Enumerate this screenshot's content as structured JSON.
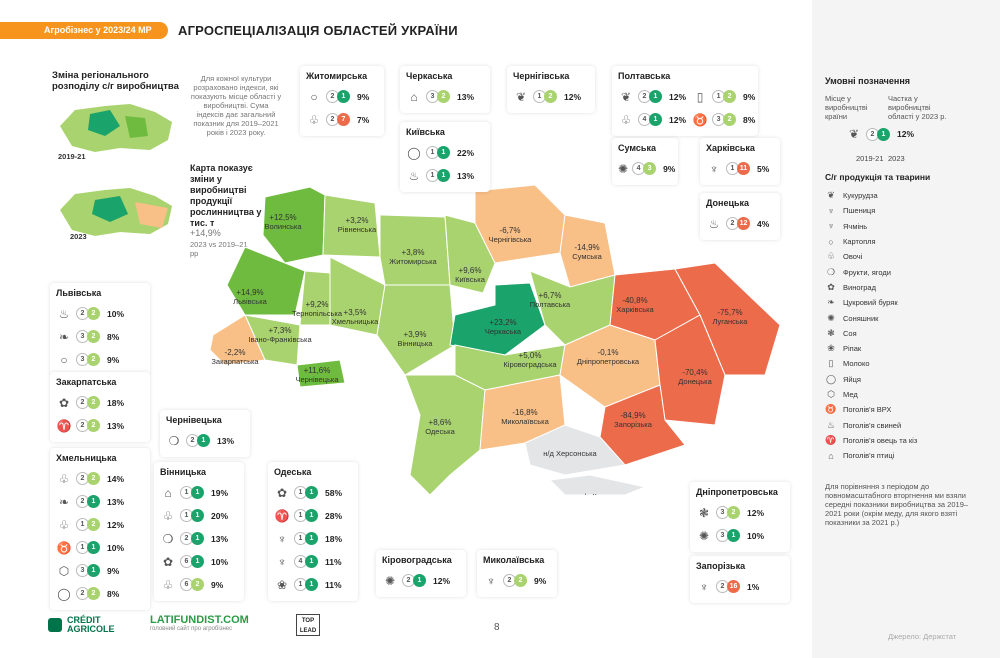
{
  "header": {
    "badge": "Агробізнес у 2023/24 МР",
    "title": "АГРОСПЕЦІАЛІЗАЦІЯ ОБЛАСТЕЙ УКРАЇНИ"
  },
  "intro": {
    "title": "Зміна регіонального розподілу с/г виробництва",
    "text": "Для кожної культури розраховано індекси, які показують місце області у виробництві. Сума індексів дає загальний показник для 2019–2021 років і 2023 року.",
    "year1": "2019-21",
    "year2": "2023",
    "map_title": "Карта показує зміни у виробництві продукції рослинництва у тис. т",
    "map_val": "+14,9%",
    "map_sub": "2023 vs 2019–21 рр"
  },
  "colors": {
    "dark_green": "#1aa36a",
    "green": "#6fbb3f",
    "light_green": "#a9d36e",
    "light_orange": "#f8bf86",
    "orange": "#f2996b",
    "red": "#ec6b4a",
    "gray": "#e4e5e7"
  },
  "regions": [
    {
      "name": "Волинська",
      "value": "+12,5%"
    },
    {
      "name": "Рівненська",
      "value": "+3,2%"
    },
    {
      "name": "Житомирська",
      "value": "+3,8%"
    },
    {
      "name": "Київська",
      "value": "+9,6%"
    },
    {
      "name": "Чернігівська",
      "value": "-6,7%"
    },
    {
      "name": "Сумська",
      "value": "-14,9%"
    },
    {
      "name": "Львівська",
      "value": "+14,9%"
    },
    {
      "name": "Тернопільська",
      "value": "+9,2%"
    },
    {
      "name": "Хмельницька",
      "value": "+3,5%"
    },
    {
      "name": "Вінницька",
      "value": "+3,9%"
    },
    {
      "name": "Черкаська",
      "value": "+23,2%"
    },
    {
      "name": "Полтавська",
      "value": "+6,7%"
    },
    {
      "name": "Харківська",
      "value": "-40,8%"
    },
    {
      "name": "Луганська",
      "value": "-75,7%"
    },
    {
      "name": "Івано-Франківська",
      "value": "+7,3%"
    },
    {
      "name": "Закарпатська",
      "value": "-2,2%"
    },
    {
      "name": "Чернівецька",
      "value": "+11,6%"
    },
    {
      "name": "Кіровоградська",
      "value": "+5,0%"
    },
    {
      "name": "Дніпропетровська",
      "value": "-0,1%"
    },
    {
      "name": "Донецька",
      "value": "-70,4%"
    },
    {
      "name": "Одеська",
      "value": "+8,6%"
    },
    {
      "name": "Миколаївська",
      "value": "-16,8%"
    },
    {
      "name": "Запорізька",
      "value": "-84,9%"
    },
    {
      "name": "н/д Херсонська",
      "value": ""
    },
    {
      "name": "н/д Крим",
      "value": ""
    }
  ],
  "cards": [
    {
      "name": "Житомирська",
      "rows": [
        {
          "icon": "potato-icon",
          "g": "○",
          "a": "2",
          "b": "1",
          "p": "9%"
        },
        {
          "icon": "vegetables-icon",
          "g": "♧",
          "a": "2",
          "b": "7",
          "p": "7%"
        }
      ]
    },
    {
      "name": "Черкаська",
      "rows": [
        {
          "icon": "poultry-icon",
          "g": "⌂",
          "a": "3",
          "b": "2",
          "p": "13%"
        }
      ]
    },
    {
      "name": "Чернігівська",
      "rows": [
        {
          "icon": "corn-icon",
          "g": "❦",
          "a": "1",
          "b": "2",
          "p": "12%"
        }
      ]
    },
    {
      "name": "Полтавська",
      "rows": [
        {
          "icon": "corn-icon",
          "g": "❦",
          "a": "2",
          "b": "1",
          "p": "12%"
        },
        {
          "icon": "milk-icon",
          "g": "▯",
          "a": "1",
          "b": "2",
          "p": "9%"
        },
        {
          "icon": "vegetables-icon",
          "g": "♧",
          "a": "4",
          "b": "1",
          "p": "12%"
        },
        {
          "icon": "cattle-icon",
          "g": "♉",
          "a": "3",
          "b": "2",
          "p": "8%"
        }
      ]
    },
    {
      "name": "Київська",
      "rows": [
        {
          "icon": "eggs-icon",
          "g": "◯",
          "a": "1",
          "b": "1",
          "p": "22%"
        },
        {
          "icon": "pigs-icon",
          "g": "♨",
          "a": "1",
          "b": "1",
          "p": "13%"
        }
      ]
    },
    {
      "name": "Сумська",
      "rows": [
        {
          "icon": "sunflower-icon",
          "g": "✺",
          "a": "4",
          "b": "3",
          "p": "9%"
        }
      ]
    },
    {
      "name": "Харківська",
      "rows": [
        {
          "icon": "wheat-icon",
          "g": "♆",
          "a": "1",
          "b": "11",
          "p": "5%"
        }
      ]
    },
    {
      "name": "Донецька",
      "rows": [
        {
          "icon": "pigs-icon",
          "g": "♨",
          "a": "2",
          "b": "12",
          "p": "4%"
        }
      ]
    },
    {
      "name": "Львівська",
      "rows": [
        {
          "icon": "pigs-icon",
          "g": "♨",
          "a": "2",
          "b": "2",
          "p": "10%"
        },
        {
          "icon": "sugar-beet-icon",
          "g": "❧",
          "a": "3",
          "b": "2",
          "p": "8%"
        },
        {
          "icon": "potato-icon",
          "g": "○",
          "a": "3",
          "b": "2",
          "p": "9%"
        }
      ]
    },
    {
      "name": "Закарпатська",
      "rows": [
        {
          "icon": "grapes-icon",
          "g": "✿",
          "a": "2",
          "b": "2",
          "p": "18%"
        },
        {
          "icon": "sheep-icon",
          "g": "♈",
          "a": "2",
          "b": "2",
          "p": "13%"
        }
      ]
    },
    {
      "name": "Хмельницька",
      "rows": [
        {
          "icon": "vegetables-icon",
          "g": "♧",
          "a": "2",
          "b": "2",
          "p": "14%"
        },
        {
          "icon": "sugar-beet-icon",
          "g": "❧",
          "a": "2",
          "b": "1",
          "p": "13%"
        },
        {
          "icon": "vegetables-icon",
          "g": "♧",
          "a": "1",
          "b": "2",
          "p": "12%"
        },
        {
          "icon": "cattle-icon",
          "g": "♉",
          "a": "1",
          "b": "1",
          "p": "10%"
        },
        {
          "icon": "honey-icon",
          "g": "⬡",
          "a": "3",
          "b": "1",
          "p": "9%"
        },
        {
          "icon": "eggs-icon",
          "g": "◯",
          "a": "2",
          "b": "2",
          "p": "8%"
        }
      ]
    },
    {
      "name": "Чернівецька",
      "rows": [
        {
          "icon": "fruit-icon",
          "g": "❍",
          "a": "2",
          "b": "1",
          "p": "13%"
        }
      ]
    },
    {
      "name": "Вінницька",
      "rows": [
        {
          "icon": "poultry-icon",
          "g": "⌂",
          "a": "1",
          "b": "1",
          "p": "19%"
        },
        {
          "icon": "vegetables-icon",
          "g": "♧",
          "a": "1",
          "b": "1",
          "p": "20%"
        },
        {
          "icon": "fruit-icon",
          "g": "❍",
          "a": "2",
          "b": "1",
          "p": "13%"
        },
        {
          "icon": "grapes-icon",
          "g": "✿",
          "a": "6",
          "b": "1",
          "p": "10%"
        },
        {
          "icon": "vegetables-icon",
          "g": "♧",
          "a": "6",
          "b": "2",
          "p": "9%"
        }
      ]
    },
    {
      "name": "Одеська",
      "rows": [
        {
          "icon": "grapes-icon",
          "g": "✿",
          "a": "1",
          "b": "1",
          "p": "58%"
        },
        {
          "icon": "sheep-icon",
          "g": "♈",
          "a": "1",
          "b": "1",
          "p": "28%"
        },
        {
          "icon": "barley-icon",
          "g": "♆",
          "a": "1",
          "b": "1",
          "p": "18%"
        },
        {
          "icon": "wheat-icon",
          "g": "♆",
          "a": "4",
          "b": "1",
          "p": "11%"
        },
        {
          "icon": "rapeseed-icon",
          "g": "❀",
          "a": "1",
          "b": "1",
          "p": "11%"
        }
      ]
    },
    {
      "name": "Кіровоградська",
      "rows": [
        {
          "icon": "sunflower-icon",
          "g": "✺",
          "a": "2",
          "b": "1",
          "p": "12%"
        }
      ]
    },
    {
      "name": "Миколаївська",
      "rows": [
        {
          "icon": "barley-icon",
          "g": "♆",
          "a": "2",
          "b": "2",
          "p": "9%"
        }
      ]
    },
    {
      "name": "Дніпропетровська",
      "rows": [
        {
          "icon": "soy-icon",
          "g": "❃",
          "a": "3",
          "b": "2",
          "p": "12%"
        },
        {
          "icon": "sunflower-icon",
          "g": "✺",
          "a": "3",
          "b": "1",
          "p": "10%"
        }
      ]
    },
    {
      "name": "Запорізька",
      "rows": [
        {
          "icon": "barley-icon",
          "g": "♆",
          "a": "2",
          "b": "16",
          "p": "1%"
        }
      ]
    }
  ],
  "legend": {
    "title": "Умовні позначення",
    "place_label": "Місце у виробництві країни",
    "share_label": "Частка у виробництві області у 2023 р.",
    "example": {
      "a": "2",
      "b": "1",
      "p": "12%",
      "y1": "2019-21",
      "y2": "2023"
    },
    "items_title": "С/г продукція та тварини",
    "items": [
      {
        "icon": "corn-icon",
        "g": "❦",
        "label": "Кукурудза"
      },
      {
        "icon": "wheat-icon",
        "g": "♆",
        "label": "Пшениця"
      },
      {
        "icon": "barley-icon",
        "g": "♆",
        "label": "Ячмінь"
      },
      {
        "icon": "potato-icon",
        "g": "○",
        "label": "Картопля"
      },
      {
        "icon": "vegetables-icon",
        "g": "♧",
        "label": "Овочі"
      },
      {
        "icon": "fruit-icon",
        "g": "❍",
        "label": "Фрукти, ягоди"
      },
      {
        "icon": "grapes-icon",
        "g": "✿",
        "label": "Виноград"
      },
      {
        "icon": "sugar-beet-icon",
        "g": "❧",
        "label": "Цукровий буряк"
      },
      {
        "icon": "sunflower-icon",
        "g": "✺",
        "label": "Соняшник"
      },
      {
        "icon": "soy-icon",
        "g": "❃",
        "label": "Соя"
      },
      {
        "icon": "rapeseed-icon",
        "g": "❀",
        "label": "Ріпак"
      },
      {
        "icon": "milk-icon",
        "g": "▯",
        "label": "Молоко"
      },
      {
        "icon": "eggs-icon",
        "g": "◯",
        "label": "Яйця"
      },
      {
        "icon": "honey-icon",
        "g": "⬡",
        "label": "Мед"
      },
      {
        "icon": "cattle-icon",
        "g": "♉",
        "label": "Поголів'я ВРХ"
      },
      {
        "icon": "pigs-icon",
        "g": "♨",
        "label": "Поголів'я свиней"
      },
      {
        "icon": "sheep-icon",
        "g": "♈",
        "label": "Поголів'я овець та кіз"
      },
      {
        "icon": "poultry-icon",
        "g": "⌂",
        "label": "Поголів'я птиці"
      }
    ],
    "note": "Для порівняння з періодом до повномасштабного вторгнення ми взяли середні показники виробництва за 2019–2021 роки (окрім меду, для якого взяті показники за 2021 р.)",
    "source": "Джерело: Держстат"
  },
  "footer": {
    "brand1": "CRÉDIT AGRICOLE",
    "brand2": "LATIFUNDIST.COM",
    "brand2_sub": "головний сайт про агробізнес",
    "brand3": "TOP LEAD",
    "page": "8"
  }
}
